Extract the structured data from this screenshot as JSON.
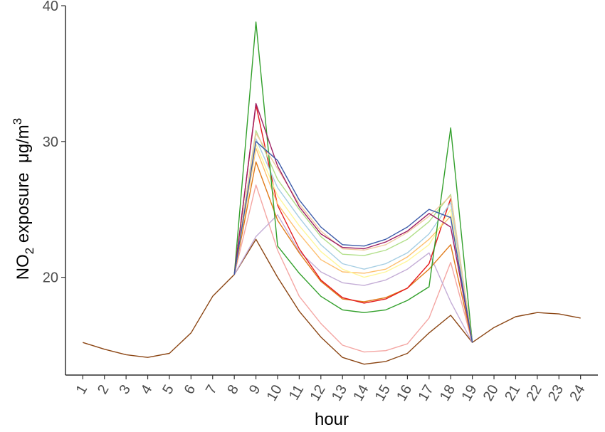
{
  "chart_data": {
    "type": "line",
    "title": "",
    "xlabel": "hour",
    "ylabel": {
      "prefix": "NO",
      "subscript": "2",
      "mid": " exposure  ",
      "unit": "μg/m",
      "superscript": "3"
    },
    "x": [
      1,
      2,
      3,
      4,
      5,
      6,
      7,
      8,
      9,
      10,
      11,
      12,
      13,
      14,
      15,
      16,
      17,
      18,
      19,
      20,
      21,
      22,
      23,
      24
    ],
    "x_tick_labels": [
      "1",
      "2",
      "3",
      "4",
      "5",
      "6",
      "7",
      "8",
      "9",
      "10",
      "11",
      "12",
      "13",
      "14",
      "15",
      "16",
      "17",
      "18",
      "19",
      "20",
      "21",
      "22",
      "23",
      "24"
    ],
    "y_tick_labels": [
      "20",
      "30",
      "40"
    ],
    "y_ticks": [
      20,
      30,
      40
    ],
    "ylim": [
      12.8,
      40.0
    ],
    "xlim": [
      0.2,
      24.8
    ],
    "grid": false,
    "legend": "none",
    "series": [
      {
        "color": "#8B4513",
        "values": [
          15.2,
          14.7,
          14.3,
          14.1,
          14.4,
          15.9,
          18.6,
          20.2,
          22.8,
          20.0,
          17.5,
          15.6,
          14.1,
          13.6,
          13.8,
          14.4,
          15.9,
          17.2,
          15.2,
          16.3,
          17.1,
          17.4,
          17.3,
          17.0
        ]
      },
      {
        "color": "#F4A6A3",
        "values": [
          null,
          null,
          null,
          null,
          null,
          null,
          null,
          20.2,
          26.8,
          22.0,
          18.6,
          16.6,
          15.0,
          14.5,
          14.6,
          15.1,
          17.0,
          21.1,
          15.2,
          null,
          null,
          null,
          null,
          null
        ]
      },
      {
        "color": "#C4ADD6",
        "values": [
          null,
          null,
          null,
          null,
          null,
          null,
          null,
          20.2,
          23.0,
          24.6,
          21.9,
          20.4,
          19.6,
          19.4,
          19.8,
          20.6,
          21.8,
          18.2,
          15.2,
          null,
          null,
          null,
          null,
          null
        ]
      },
      {
        "color": "#E07B1A",
        "values": [
          null,
          null,
          null,
          null,
          null,
          null,
          null,
          20.2,
          28.5,
          24.2,
          21.8,
          19.7,
          18.4,
          18.2,
          18.5,
          19.2,
          20.6,
          22.4,
          15.2,
          null,
          null,
          null,
          null,
          null
        ]
      },
      {
        "color": "#E31A1C",
        "values": [
          null,
          null,
          null,
          null,
          null,
          null,
          null,
          20.2,
          32.7,
          25.3,
          22.1,
          19.8,
          18.5,
          18.1,
          18.4,
          19.2,
          21.0,
          25.8,
          15.2,
          null,
          null,
          null,
          null,
          null
        ]
      },
      {
        "color": "#FDBF6F",
        "values": [
          null,
          null,
          null,
          null,
          null,
          null,
          null,
          20.2,
          29.5,
          25.4,
          23.2,
          21.3,
          20.4,
          20.3,
          20.6,
          21.5,
          22.8,
          24.5,
          15.2,
          null,
          null,
          null,
          null,
          null
        ]
      },
      {
        "color": "#FFF79A",
        "values": [
          null,
          null,
          null,
          null,
          null,
          null,
          null,
          20.2,
          29.8,
          26.0,
          23.8,
          21.9,
          20.6,
          20.0,
          20.4,
          21.2,
          22.4,
          25.0,
          15.2,
          null,
          null,
          null,
          null,
          null
        ]
      },
      {
        "color": "#A6CEE3",
        "values": [
          null,
          null,
          null,
          null,
          null,
          null,
          null,
          20.2,
          30.2,
          26.6,
          24.4,
          22.4,
          21.0,
          20.6,
          21.0,
          21.8,
          23.2,
          25.5,
          15.2,
          null,
          null,
          null,
          null,
          null
        ]
      },
      {
        "color": "#B2DF8A",
        "values": [
          null,
          null,
          null,
          null,
          null,
          null,
          null,
          20.2,
          30.8,
          27.2,
          25.0,
          23.0,
          21.7,
          21.6,
          22.0,
          22.8,
          24.1,
          26.1,
          15.2,
          null,
          null,
          null,
          null,
          null
        ]
      },
      {
        "color": "#33A02C",
        "values": [
          null,
          null,
          null,
          null,
          null,
          null,
          null,
          20.2,
          38.8,
          22.3,
          20.3,
          18.6,
          17.6,
          17.4,
          17.6,
          18.3,
          19.3,
          31.0,
          15.2,
          null,
          null,
          null,
          null,
          null
        ]
      },
      {
        "color": "#F2C9A0",
        "values": [
          null,
          null,
          null,
          null,
          null,
          null,
          null,
          20.2,
          30.6,
          28.0,
          25.4,
          23.4,
          22.1,
          22.0,
          22.4,
          23.3,
          24.5,
          26.0,
          15.2,
          null,
          null,
          null,
          null,
          null
        ]
      },
      {
        "color": "#9E1F63",
        "values": [
          null,
          null,
          null,
          null,
          null,
          null,
          null,
          20.2,
          32.8,
          28.2,
          25.2,
          23.2,
          22.2,
          22.1,
          22.6,
          23.4,
          24.7,
          23.7,
          15.2,
          null,
          null,
          null,
          null,
          null
        ]
      },
      {
        "color": "#3C5BA9",
        "values": [
          null,
          null,
          null,
          null,
          null,
          null,
          null,
          20.2,
          30.0,
          28.6,
          25.7,
          23.7,
          22.4,
          22.3,
          22.8,
          23.7,
          25.0,
          24.4,
          15.2,
          null,
          null,
          null,
          null,
          null
        ]
      }
    ]
  }
}
